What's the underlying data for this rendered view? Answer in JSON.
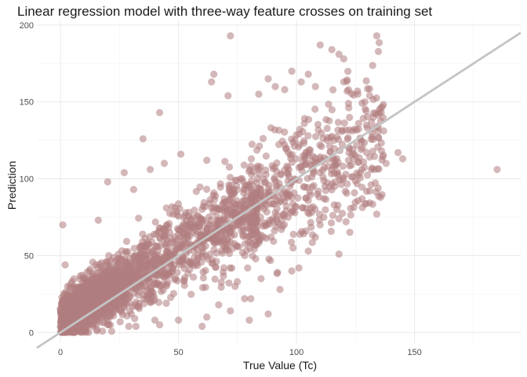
{
  "chart_data": {
    "type": "scatter",
    "title": "Linear regression model with three-way feature crosses on training set",
    "xlabel": "True Value (Tc)",
    "ylabel": "Prediction",
    "xlim": [
      -10,
      195
    ],
    "ylim": [
      -7,
      203
    ],
    "x_ticks": [
      0,
      50,
      100,
      150
    ],
    "y_ticks": [
      0,
      50,
      100,
      150,
      200
    ],
    "x_minor_ticks": [
      25,
      75,
      125,
      175
    ],
    "y_minor_ticks": [
      25,
      75,
      125,
      175
    ],
    "grid": true,
    "point_color": "#b07e80",
    "point_opacity": 0.55,
    "reference_line": {
      "type": "identity",
      "color": "#c4c4c4",
      "slope": 1,
      "intercept": 0
    },
    "sample_points": [
      [
        185,
        106
      ],
      [
        72,
        193
      ],
      [
        134,
        193
      ],
      [
        110,
        187
      ],
      [
        115,
        184
      ],
      [
        118,
        181
      ],
      [
        120,
        178
      ],
      [
        98,
        170
      ],
      [
        105,
        168
      ],
      [
        102,
        163
      ],
      [
        91,
        160
      ],
      [
        88,
        165
      ],
      [
        65,
        168
      ],
      [
        64,
        163
      ],
      [
        95,
        158
      ],
      [
        108,
        160
      ],
      [
        120,
        163
      ],
      [
        122,
        158
      ],
      [
        126,
        155
      ],
      [
        131,
        154
      ],
      [
        129,
        150
      ],
      [
        71,
        154
      ],
      [
        84,
        155
      ],
      [
        42,
        143
      ],
      [
        35,
        126
      ],
      [
        143,
        117
      ],
      [
        145,
        113
      ],
      [
        138,
        110
      ],
      [
        132,
        107
      ],
      [
        127,
        104
      ],
      [
        122,
        112
      ],
      [
        131,
        92
      ],
      [
        134,
        77
      ],
      [
        118,
        74
      ],
      [
        121,
        72
      ],
      [
        116,
        83
      ],
      [
        110,
        70
      ],
      [
        104,
        66
      ],
      [
        108,
        62
      ],
      [
        101,
        42
      ],
      [
        118,
        51
      ],
      [
        105,
        53
      ],
      [
        88,
        12
      ],
      [
        80,
        8
      ],
      [
        62,
        10
      ],
      [
        50,
        8
      ],
      [
        42,
        5
      ],
      [
        40,
        8
      ],
      [
        32,
        4
      ],
      [
        30,
        12
      ],
      [
        20,
        5
      ],
      [
        14,
        5
      ],
      [
        8,
        2
      ],
      [
        5,
        1
      ],
      [
        2,
        0
      ],
      [
        1,
        70
      ],
      [
        16,
        73
      ],
      [
        2,
        44
      ],
      [
        3,
        30
      ],
      [
        38,
        106
      ],
      [
        44,
        110
      ],
      [
        51,
        116
      ],
      [
        62,
        112
      ],
      [
        27,
        104
      ],
      [
        20,
        98
      ],
      [
        31,
        93
      ],
      [
        60,
        4
      ],
      [
        72,
        14
      ],
      [
        78,
        22
      ],
      [
        93,
        28
      ],
      [
        98,
        40
      ],
      [
        85,
        35
      ],
      [
        74,
        30
      ],
      [
        67,
        18
      ]
    ]
  }
}
